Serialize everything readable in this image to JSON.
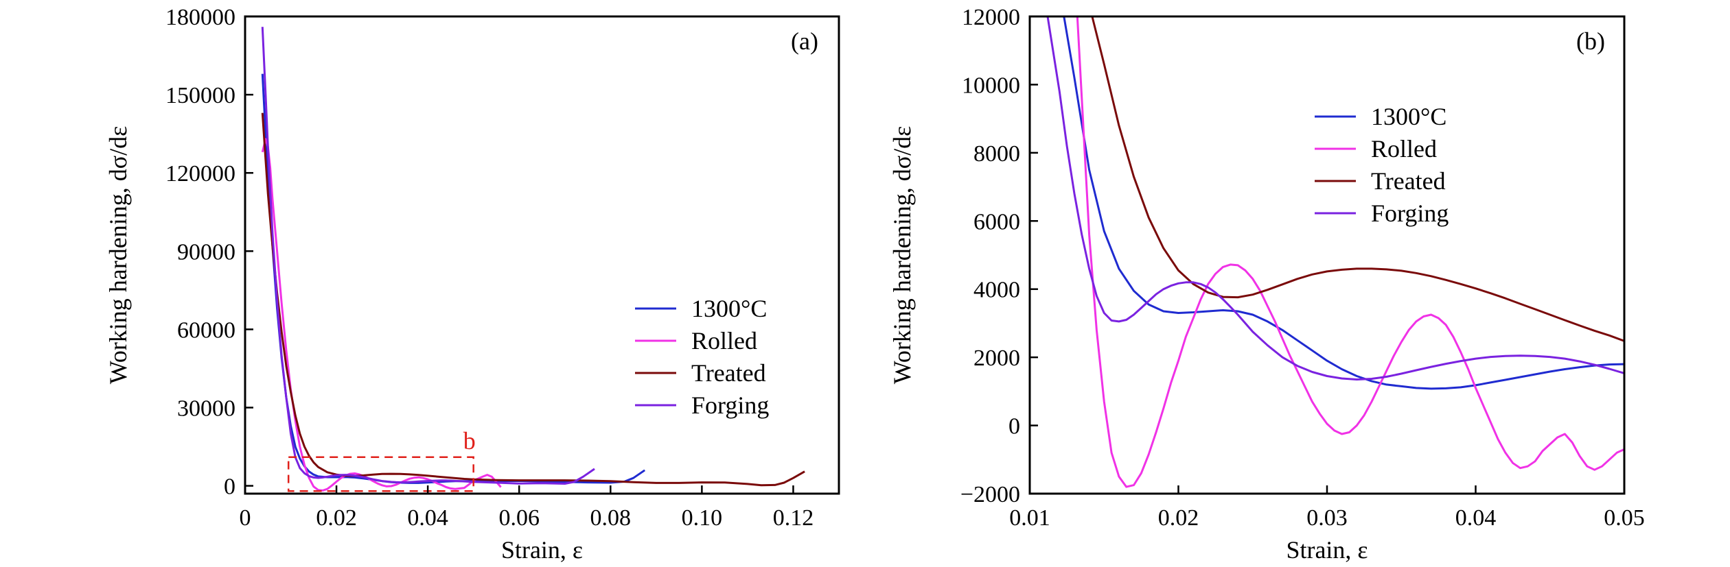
{
  "figure": {
    "panels": [
      {
        "id": "a",
        "tag": "(a)"
      },
      {
        "id": "b",
        "tag": "(b)"
      }
    ],
    "zoom_box_label": "b"
  },
  "chart_data": [
    {
      "panel": "(a)",
      "type": "line",
      "title": "",
      "xlabel": "Strain, ε",
      "ylabel": "Working hardening, dσ/dε",
      "xlim": [
        0,
        0.13
      ],
      "ylim": [
        -3000,
        180000
      ],
      "xticks": [
        0,
        0.02,
        0.04,
        0.06,
        0.08,
        0.1,
        0.12
      ],
      "xtick_labels": [
        "0",
        "0.02",
        "0.04",
        "0.06",
        "0.08",
        "0.10",
        "0.12"
      ],
      "yticks": [
        0,
        30000,
        60000,
        90000,
        120000,
        150000,
        180000
      ],
      "ytick_labels": [
        "0",
        "30000",
        "60000",
        "90000",
        "120000",
        "150000",
        "180000"
      ],
      "grid": false,
      "legend_position": "right",
      "annotation": {
        "text": "b",
        "box_x": [
          0.0095,
          0.05
        ],
        "box_y": [
          -2000,
          11000
        ]
      },
      "series": [
        {
          "name": "1300°C",
          "color": "#1f2bd0",
          "x": [
            0.0038,
            0.0045,
            0.005,
            0.006,
            0.007,
            0.008,
            0.009,
            0.01,
            0.011,
            0.012,
            0.013,
            0.014,
            0.015,
            0.016,
            0.018,
            0.02,
            0.022,
            0.024,
            0.026,
            0.028,
            0.03,
            0.032,
            0.034,
            0.036,
            0.038,
            0.04,
            0.042,
            0.044,
            0.046,
            0.048,
            0.05,
            0.055,
            0.06,
            0.065,
            0.07,
            0.075,
            0.08,
            0.083,
            0.085,
            0.0875
          ],
          "y": [
            158000,
            135000,
            118000,
            92000,
            68000,
            49000,
            34000,
            23000,
            15000,
            10500,
            7500,
            5500,
            4300,
            3600,
            3300,
            3300,
            3350,
            3200,
            2800,
            2300,
            1800,
            1400,
            1200,
            1100,
            1100,
            1250,
            1450,
            1650,
            1800,
            1800,
            1800,
            1850,
            1900,
            1700,
            1500,
            1300,
            1200,
            1600,
            3000,
            6000
          ]
        },
        {
          "name": "Rolled",
          "color": "#f032e6",
          "x": [
            0.0038,
            0.0045,
            0.005,
            0.0055,
            0.006,
            0.007,
            0.008,
            0.009,
            0.01,
            0.011,
            0.012,
            0.013,
            0.014,
            0.015,
            0.016,
            0.017,
            0.018,
            0.019,
            0.02,
            0.021,
            0.022,
            0.023,
            0.024,
            0.025,
            0.026,
            0.027,
            0.028,
            0.029,
            0.03,
            0.031,
            0.032,
            0.033,
            0.034,
            0.035,
            0.036,
            0.037,
            0.038,
            0.039,
            0.04,
            0.041,
            0.042,
            0.043,
            0.044,
            0.045,
            0.046,
            0.047,
            0.048,
            0.049,
            0.05,
            0.052,
            0.053,
            0.054,
            0.055,
            0.056
          ],
          "y": [
            128000,
            133000,
            130000,
            122000,
            110000,
            90000,
            70000,
            52000,
            37000,
            25000,
            15000,
            8000,
            3000,
            -300,
            -1600,
            -1800,
            -1200,
            100,
            1600,
            3000,
            4000,
            4600,
            4750,
            4400,
            3700,
            2800,
            1800,
            900,
            200,
            -200,
            -100,
            400,
            1200,
            2000,
            2700,
            3100,
            3250,
            3000,
            2500,
            1800,
            1000,
            300,
            -500,
            -1000,
            -1200,
            -1000,
            -800,
            500,
            2000,
            3500,
            4200,
            3500,
            1500,
            -500
          ]
        },
        {
          "name": "Treated",
          "color": "#7a0a0a",
          "x": [
            0.0038,
            0.0045,
            0.005,
            0.006,
            0.007,
            0.008,
            0.009,
            0.01,
            0.011,
            0.012,
            0.013,
            0.014,
            0.015,
            0.016,
            0.018,
            0.02,
            0.022,
            0.024,
            0.026,
            0.028,
            0.03,
            0.032,
            0.034,
            0.036,
            0.038,
            0.04,
            0.042,
            0.044,
            0.046,
            0.048,
            0.05,
            0.055,
            0.06,
            0.065,
            0.07,
            0.075,
            0.08,
            0.085,
            0.09,
            0.095,
            0.1,
            0.105,
            0.11,
            0.113,
            0.116,
            0.118,
            0.12,
            0.1225
          ],
          "y": [
            143000,
            125000,
            112000,
            92000,
            74000,
            59000,
            46000,
            36000,
            27000,
            20000,
            15000,
            11500,
            9000,
            7200,
            5200,
            4300,
            3900,
            3800,
            4000,
            4300,
            4550,
            4600,
            4550,
            4400,
            4150,
            3850,
            3550,
            3250,
            2950,
            2650,
            2450,
            2200,
            2100,
            2100,
            2100,
            2000,
            1800,
            1400,
            1100,
            1100,
            1300,
            1250,
            700,
            200,
            300,
            1200,
            3000,
            5500
          ]
        },
        {
          "name": "Forging",
          "color": "#7a22e0",
          "x": [
            0.0038,
            0.0045,
            0.005,
            0.006,
            0.007,
            0.008,
            0.009,
            0.01,
            0.011,
            0.012,
            0.013,
            0.014,
            0.015,
            0.016,
            0.017,
            0.018,
            0.019,
            0.02,
            0.021,
            0.022,
            0.023,
            0.024,
            0.025,
            0.026,
            0.027,
            0.028,
            0.029,
            0.03,
            0.031,
            0.032,
            0.033,
            0.034,
            0.035,
            0.036,
            0.037,
            0.038,
            0.039,
            0.04,
            0.041,
            0.042,
            0.043,
            0.044,
            0.045,
            0.046,
            0.047,
            0.048,
            0.049,
            0.05,
            0.055,
            0.06,
            0.065,
            0.07,
            0.072,
            0.074,
            0.0765
          ],
          "y": [
            176000,
            150000,
            130000,
            97000,
            71000,
            50000,
            34000,
            20000,
            11000,
            6800,
            4800,
            3700,
            3200,
            3050,
            3200,
            3500,
            3800,
            4050,
            4180,
            4200,
            4100,
            3900,
            3600,
            3300,
            2900,
            2500,
            2150,
            1850,
            1650,
            1500,
            1400,
            1350,
            1350,
            1450,
            1550,
            1650,
            1750,
            1850,
            1950,
            2000,
            2050,
            2050,
            2000,
            1900,
            1800,
            1700,
            1600,
            1500,
            1200,
            900,
            1000,
            800,
            1500,
            3500,
            6500
          ]
        }
      ]
    },
    {
      "panel": "(b)",
      "type": "line",
      "title": "",
      "xlabel": "Strain, ε",
      "ylabel": "Working hardening, dσ/dε",
      "xlim": [
        0.01,
        0.05
      ],
      "ylim": [
        -2000,
        12000
      ],
      "xticks": [
        0.01,
        0.02,
        0.03,
        0.04,
        0.05
      ],
      "xtick_labels": [
        "0.01",
        "0.02",
        "0.03",
        "0.04",
        "0.05"
      ],
      "yticks": [
        -2000,
        0,
        2000,
        4000,
        6000,
        8000,
        10000,
        12000
      ],
      "ytick_labels": [
        "−2000",
        "0",
        "2000",
        "4000",
        "6000",
        "8000",
        "10000",
        "12000"
      ],
      "grid": false,
      "legend_position": "upper right",
      "series": [
        {
          "name": "1300°C",
          "color": "#1f2bd0",
          "x": [
            0.0123,
            0.013,
            0.014,
            0.015,
            0.016,
            0.017,
            0.018,
            0.019,
            0.02,
            0.021,
            0.022,
            0.023,
            0.024,
            0.025,
            0.026,
            0.027,
            0.028,
            0.029,
            0.03,
            0.031,
            0.032,
            0.033,
            0.034,
            0.035,
            0.036,
            0.037,
            0.038,
            0.039,
            0.04,
            0.041,
            0.042,
            0.043,
            0.044,
            0.045,
            0.046,
            0.047,
            0.048,
            0.049,
            0.05
          ],
          "y": [
            12000,
            10200,
            7500,
            5700,
            4600,
            3950,
            3550,
            3350,
            3300,
            3320,
            3350,
            3380,
            3350,
            3250,
            3050,
            2800,
            2500,
            2200,
            1900,
            1650,
            1450,
            1300,
            1200,
            1150,
            1100,
            1080,
            1090,
            1120,
            1180,
            1260,
            1340,
            1420,
            1500,
            1580,
            1650,
            1710,
            1760,
            1790,
            1800
          ]
        },
        {
          "name": "Rolled",
          "color": "#f032e6",
          "x": [
            0.0132,
            0.0137,
            0.014,
            0.0145,
            0.015,
            0.0155,
            0.016,
            0.0165,
            0.017,
            0.0175,
            0.018,
            0.0185,
            0.019,
            0.0195,
            0.02,
            0.0205,
            0.021,
            0.0215,
            0.022,
            0.0225,
            0.023,
            0.0235,
            0.024,
            0.0245,
            0.025,
            0.0255,
            0.026,
            0.0265,
            0.027,
            0.0275,
            0.028,
            0.0285,
            0.029,
            0.0295,
            0.03,
            0.0305,
            0.031,
            0.0315,
            0.032,
            0.0325,
            0.033,
            0.0335,
            0.034,
            0.0345,
            0.035,
            0.0355,
            0.036,
            0.0365,
            0.037,
            0.0375,
            0.038,
            0.0385,
            0.039,
            0.0395,
            0.04,
            0.0405,
            0.041,
            0.0415,
            0.042,
            0.0425,
            0.043,
            0.0435,
            0.044,
            0.0445,
            0.045,
            0.0455,
            0.046,
            0.0465,
            0.047,
            0.0475,
            0.048,
            0.0485,
            0.049,
            0.0495,
            0.05
          ],
          "y": [
            12000,
            8000,
            5600,
            2800,
            700,
            -800,
            -1500,
            -1800,
            -1750,
            -1400,
            -850,
            -200,
            500,
            1250,
            1900,
            2600,
            3150,
            3700,
            4150,
            4450,
            4650,
            4720,
            4700,
            4550,
            4300,
            3950,
            3500,
            3050,
            2550,
            2050,
            1600,
            1150,
            700,
            350,
            50,
            -150,
            -250,
            -200,
            0,
            300,
            700,
            1150,
            1600,
            2050,
            2450,
            2800,
            3050,
            3200,
            3250,
            3150,
            2950,
            2600,
            2150,
            1650,
            1100,
            600,
            100,
            -400,
            -800,
            -1100,
            -1250,
            -1200,
            -1050,
            -750,
            -550,
            -350,
            -250,
            -500,
            -900,
            -1200,
            -1300,
            -1200,
            -1000,
            -800,
            -700
          ]
        },
        {
          "name": "Treated",
          "color": "#7a0a0a",
          "x": [
            0.0142,
            0.015,
            0.016,
            0.017,
            0.018,
            0.019,
            0.02,
            0.021,
            0.022,
            0.023,
            0.024,
            0.025,
            0.026,
            0.027,
            0.028,
            0.029,
            0.03,
            0.031,
            0.032,
            0.033,
            0.034,
            0.035,
            0.036,
            0.037,
            0.038,
            0.039,
            0.04,
            0.041,
            0.042,
            0.043,
            0.044,
            0.045,
            0.046,
            0.047,
            0.048,
            0.049,
            0.05
          ],
          "y": [
            12000,
            10600,
            8800,
            7300,
            6100,
            5200,
            4550,
            4150,
            3900,
            3770,
            3760,
            3840,
            3980,
            4140,
            4300,
            4430,
            4520,
            4570,
            4600,
            4600,
            4580,
            4540,
            4470,
            4380,
            4270,
            4150,
            4020,
            3880,
            3730,
            3570,
            3410,
            3250,
            3090,
            2930,
            2780,
            2640,
            2480
          ]
        },
        {
          "name": "Forging",
          "color": "#7a22e0",
          "x": [
            0.0112,
            0.012,
            0.0125,
            0.013,
            0.0135,
            0.014,
            0.0145,
            0.015,
            0.0155,
            0.016,
            0.0165,
            0.017,
            0.0175,
            0.018,
            0.0185,
            0.019,
            0.0195,
            0.02,
            0.0205,
            0.021,
            0.0215,
            0.022,
            0.0225,
            0.023,
            0.0235,
            0.024,
            0.0245,
            0.025,
            0.026,
            0.027,
            0.028,
            0.029,
            0.03,
            0.031,
            0.032,
            0.033,
            0.034,
            0.035,
            0.036,
            0.037,
            0.038,
            0.039,
            0.04,
            0.041,
            0.042,
            0.043,
            0.044,
            0.045,
            0.046,
            0.047,
            0.048,
            0.049,
            0.05
          ],
          "y": [
            12000,
            9800,
            8200,
            6800,
            5600,
            4600,
            3800,
            3300,
            3080,
            3050,
            3100,
            3250,
            3450,
            3650,
            3850,
            4000,
            4100,
            4170,
            4200,
            4200,
            4150,
            4050,
            3900,
            3700,
            3480,
            3250,
            3000,
            2750,
            2350,
            2000,
            1750,
            1570,
            1450,
            1380,
            1350,
            1370,
            1430,
            1520,
            1620,
            1720,
            1810,
            1890,
            1960,
            2010,
            2040,
            2050,
            2040,
            2010,
            1960,
            1880,
            1780,
            1660,
            1530
          ]
        }
      ]
    }
  ]
}
